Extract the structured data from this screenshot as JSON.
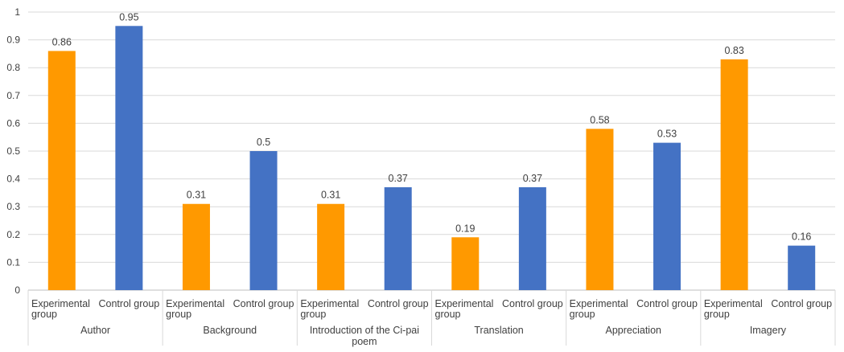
{
  "chart_data": {
    "type": "bar",
    "title": "",
    "xlabel": "",
    "ylabel": "",
    "ylim": [
      0,
      1
    ],
    "yticks": [
      "0",
      "0.1",
      "0.2",
      "0.3",
      "0.4",
      "0.5",
      "0.6",
      "0.7",
      "0.8",
      "0.9",
      "1"
    ],
    "grid": true,
    "legend": "none",
    "groups": [
      {
        "name": [
          "Author"
        ],
        "bars": [
          {
            "category": [
              "Experimental",
              "group"
            ],
            "value": 0.86,
            "label": "0.86",
            "color": "#FF9900"
          },
          {
            "category": [
              "Control group"
            ],
            "value": 0.95,
            "label": "0.95",
            "color": "#4472C4"
          }
        ]
      },
      {
        "name": [
          "Background"
        ],
        "bars": [
          {
            "category": [
              "Experimental",
              "group"
            ],
            "value": 0.31,
            "label": "0.31",
            "color": "#FF9900"
          },
          {
            "category": [
              "Control group"
            ],
            "value": 0.5,
            "label": "0.5",
            "color": "#4472C4"
          }
        ]
      },
      {
        "name": [
          "Introduction of the Ci-pai",
          "poem"
        ],
        "bars": [
          {
            "category": [
              "Experimental",
              "group"
            ],
            "value": 0.31,
            "label": "0.31",
            "color": "#FF9900"
          },
          {
            "category": [
              "Control group"
            ],
            "value": 0.37,
            "label": "0.37",
            "color": "#4472C4"
          }
        ]
      },
      {
        "name": [
          "Translation"
        ],
        "bars": [
          {
            "category": [
              "Experimental",
              "group"
            ],
            "value": 0.19,
            "label": "0.19",
            "color": "#FF9900"
          },
          {
            "category": [
              "Control group"
            ],
            "value": 0.37,
            "label": "0.37",
            "color": "#4472C4"
          }
        ]
      },
      {
        "name": [
          "Appreciation"
        ],
        "bars": [
          {
            "category": [
              "Experimental",
              "group"
            ],
            "value": 0.58,
            "label": "0.58",
            "color": "#FF9900"
          },
          {
            "category": [
              "Control group"
            ],
            "value": 0.53,
            "label": "0.53",
            "color": "#4472C4"
          }
        ]
      },
      {
        "name": [
          "Imagery"
        ],
        "bars": [
          {
            "category": [
              "Experimental",
              "group"
            ],
            "value": 0.83,
            "label": "0.83",
            "color": "#FF9900"
          },
          {
            "category": [
              "Control group"
            ],
            "value": 0.16,
            "label": "0.16",
            "color": "#4472C4"
          }
        ]
      }
    ]
  }
}
